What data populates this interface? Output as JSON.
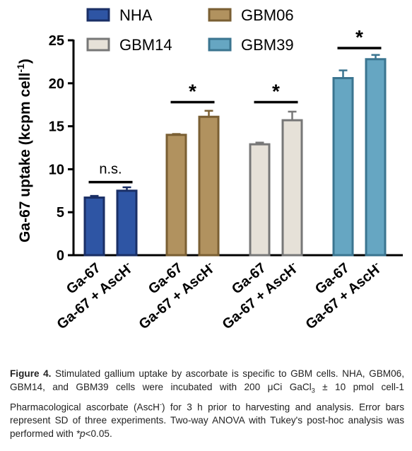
{
  "chart_data": {
    "type": "bar",
    "title": "",
    "ylabel": "Ga-67 uptake (kcpm cell",
    "ylabel_sup": "-1",
    "ylabel_close": ")",
    "ylim": [
      0,
      25
    ],
    "yticks": [
      0,
      5,
      10,
      15,
      20,
      25
    ],
    "legend_position": "top",
    "groups": [
      {
        "name": "NHA",
        "color": "#2e55a4",
        "edge": "#1a2f66"
      },
      {
        "name": "GBM06",
        "color": "#b1925f",
        "edge": "#7a5f33"
      },
      {
        "name": "GBM14",
        "color": "#e6e1d8",
        "edge": "#777777"
      },
      {
        "name": "GBM39",
        "color": "#66a6c2",
        "edge": "#3b7590"
      }
    ],
    "categories": [
      "Ga-67",
      "Ga-67 + AscH"
    ],
    "category_sup": [
      "",
      "-"
    ],
    "series": [
      {
        "group": "NHA",
        "values": [
          6.7,
          7.5
        ],
        "errors": [
          0.2,
          0.4
        ]
      },
      {
        "group": "GBM06",
        "values": [
          14.0,
          16.1
        ],
        "errors": [
          0.1,
          0.7
        ]
      },
      {
        "group": "GBM14",
        "values": [
          12.9,
          15.7
        ],
        "errors": [
          0.2,
          1.0
        ]
      },
      {
        "group": "GBM39",
        "values": [
          20.6,
          22.8
        ],
        "errors": [
          0.9,
          0.5
        ]
      }
    ],
    "significance": [
      {
        "group": "NHA",
        "label": "n.s.",
        "y": 8.5
      },
      {
        "group": "GBM06",
        "label": "*",
        "y": 17.8
      },
      {
        "group": "GBM14",
        "label": "*",
        "y": 17.8
      },
      {
        "group": "GBM39",
        "label": "*",
        "y": 24.1
      }
    ]
  },
  "caption": {
    "label": "Figure 4.",
    "text": "Stimulated gallium uptake by ascorbate is specific to GBM cells. NHA, GBM06, GBM14, and GBM39 cells were incubated with 200 μCi GaCl",
    "sub": "3",
    "text2": " ± 10 pmol cell-1 Pharmacological ascorbate (AscH",
    "sup": "-",
    "text3": ") for 3 h prior to harvesting and analysis. Error bars represent SD of three experiments. Two-way ANOVA with Tukey's post-hoc analysis was performed with ",
    "p_symbol": "*p",
    "text4": "<0.05."
  }
}
